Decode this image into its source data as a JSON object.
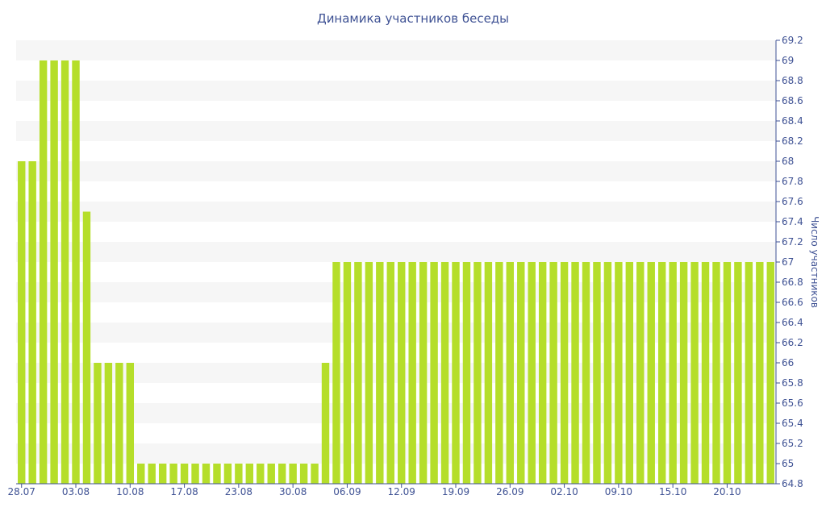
{
  "chart_data": {
    "type": "bar",
    "title": "Динамика участников беседы",
    "xlabel": "",
    "ylabel": "Число участников",
    "ylim": [
      64.8,
      69.2
    ],
    "y_ticks": [
      64.8,
      65,
      65.2,
      65.4,
      65.6,
      65.8,
      66,
      66.2,
      66.4,
      66.6,
      66.8,
      67,
      67.2,
      67.4,
      67.6,
      67.8,
      68,
      68.2,
      68.4,
      68.6,
      68.8,
      69,
      69.2
    ],
    "x_tick_labels": [
      {
        "label": "28.07",
        "index": 0
      },
      {
        "label": "03.08",
        "index": 5
      },
      {
        "label": "10.08",
        "index": 10
      },
      {
        "label": "17.08",
        "index": 15
      },
      {
        "label": "23.08",
        "index": 20
      },
      {
        "label": "30.08",
        "index": 25
      },
      {
        "label": "06.09",
        "index": 30
      },
      {
        "label": "12.09",
        "index": 35
      },
      {
        "label": "19.09",
        "index": 40
      },
      {
        "label": "26.09",
        "index": 45
      },
      {
        "label": "02.10",
        "index": 50
      },
      {
        "label": "09.10",
        "index": 55
      },
      {
        "label": "15.10",
        "index": 60
      },
      {
        "label": "20.10",
        "index": 65
      }
    ],
    "values": [
      68,
      68,
      69,
      69,
      69,
      69,
      67.5,
      66,
      66,
      66,
      66,
      65,
      65,
      65,
      65,
      65,
      65,
      65,
      65,
      65,
      65,
      65,
      65,
      65,
      65,
      65,
      65,
      65,
      66,
      67,
      67,
      67,
      67,
      67,
      67,
      67,
      67,
      67,
      67,
      67,
      67,
      67,
      67,
      67,
      67,
      67,
      67,
      67,
      67,
      67,
      67,
      67,
      67,
      67,
      67,
      67,
      67,
      67,
      67,
      67,
      67,
      67,
      67,
      67,
      67,
      67,
      67,
      67,
      67,
      67
    ],
    "grid": true,
    "colors": {
      "bar": "#b5de2a",
      "text": "#3f5294",
      "band": "#f6f6f6",
      "axis": "#3f5294"
    }
  }
}
